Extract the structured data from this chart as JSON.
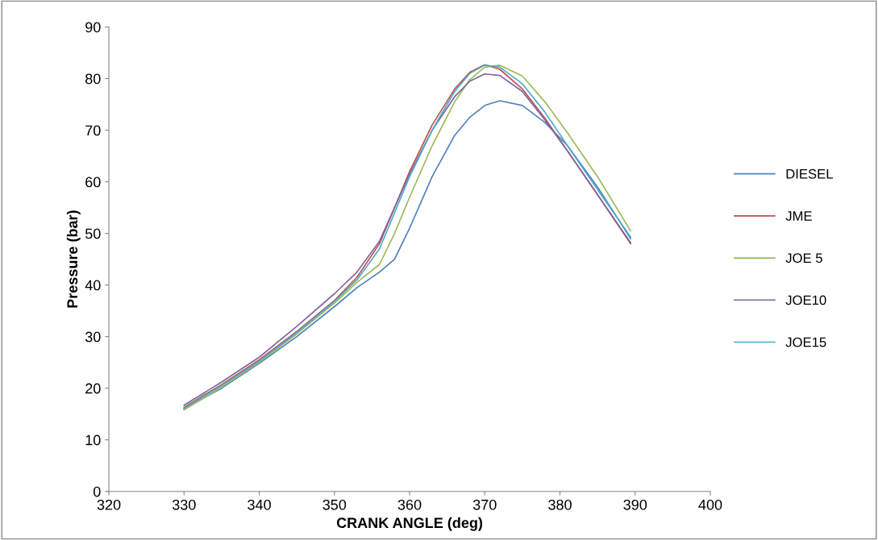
{
  "chart_data": {
    "type": "line",
    "xlabel": "CRANK ANGLE (deg)",
    "ylabel": "Pressure (bar)",
    "x": [
      330,
      335,
      340,
      345,
      350,
      353,
      356,
      358,
      360,
      363,
      366,
      368,
      370,
      372,
      375,
      378,
      381,
      385,
      389.4
    ],
    "xlim": [
      320,
      400
    ],
    "xticks": [
      320,
      330,
      340,
      350,
      360,
      370,
      380,
      390,
      400
    ],
    "ylim": [
      0,
      90
    ],
    "yticks": [
      0,
      10,
      20,
      30,
      40,
      50,
      60,
      70,
      80,
      90
    ],
    "grid": false,
    "legend": "right",
    "marker": "none",
    "line_style": "solid",
    "series": [
      {
        "name": "DIESEL",
        "color": "#4f81bd",
        "values": [
          16,
          20,
          24.8,
          30,
          35.8,
          39.5,
          42.5,
          45,
          51,
          61,
          69,
          72.5,
          74.8,
          75.7,
          74.8,
          71.5,
          67,
          59,
          49
        ]
      },
      {
        "name": "JME",
        "color": "#c0504d",
        "values": [
          16.3,
          20.7,
          25.5,
          31,
          37,
          41.5,
          48,
          55,
          62,
          71,
          78,
          81.2,
          82.7,
          81.8,
          78,
          72.3,
          66,
          57.5,
          48
        ]
      },
      {
        "name": "JOE 5",
        "color": "#9bbb59",
        "values": [
          15.8,
          20.2,
          25,
          30.5,
          36.5,
          40.5,
          44,
          50,
          57,
          67,
          75.5,
          79.8,
          82.2,
          82.6,
          80.5,
          75.5,
          69.5,
          61,
          50.5
        ]
      },
      {
        "name": "JOE10",
        "color": "#8064a2",
        "values": [
          16.7,
          21.2,
          26,
          32,
          38.3,
          42.5,
          48.5,
          55,
          61.5,
          70,
          76.5,
          79.5,
          80.9,
          80.6,
          77.5,
          72,
          66,
          57.5,
          48.2
        ]
      },
      {
        "name": "JOE15",
        "color": "#4bacc6",
        "values": [
          16.1,
          20.5,
          25.2,
          30.8,
          36.8,
          41,
          47,
          54,
          61,
          70,
          77.5,
          81,
          82.6,
          82.2,
          79,
          73.5,
          67,
          58.5,
          49.3
        ]
      }
    ]
  }
}
